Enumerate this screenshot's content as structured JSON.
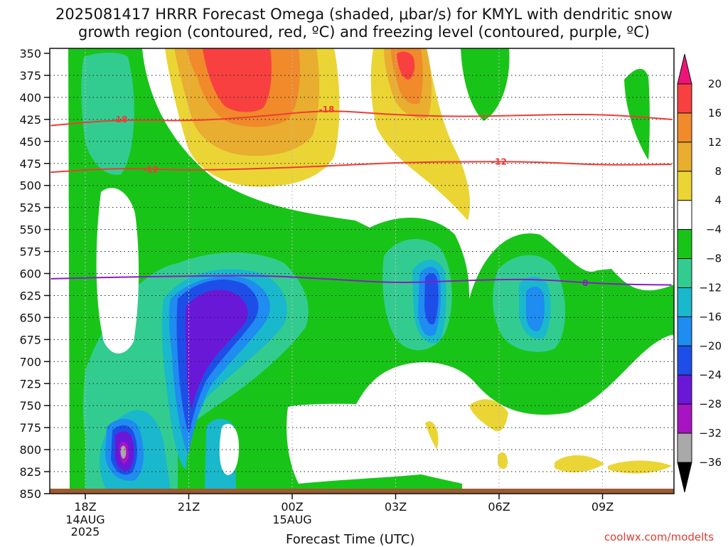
{
  "title": "2025081417 HRRR Forecast Omega (shaded, μbar/s) for KMYL with dendritic snow\ngrowth region (contoured, red, ºC) and freezing level (contoured, purple, ºC)",
  "credit": "coolwx.com/modelts",
  "chart_data": {
    "type": "time-height cross section",
    "xlabel": "Forecast Time (UTC)",
    "x_ticks": [
      {
        "label": "18Z",
        "sub": [
          "14AUG",
          "2025"
        ],
        "hour": 0
      },
      {
        "label": "21Z",
        "sub": [],
        "hour": 3
      },
      {
        "label": "00Z",
        "sub": [
          "15AUG"
        ],
        "hour": 6
      },
      {
        "label": "03Z",
        "sub": [],
        "hour": 9
      },
      {
        "label": "06Z",
        "sub": [],
        "hour": 12
      },
      {
        "label": "09Z",
        "sub": [],
        "hour": 15
      }
    ],
    "x_range_hours": [
      -1,
      17
    ],
    "y_levels_mb": [
      350,
      375,
      400,
      425,
      450,
      475,
      500,
      525,
      550,
      575,
      600,
      625,
      650,
      675,
      700,
      725,
      750,
      775,
      800,
      825,
      850
    ],
    "grid": true,
    "colorbar": {
      "labels": [
        "20",
        "16",
        "12",
        "8",
        "4",
        "−4",
        "−8",
        "−12",
        "−16",
        "−20",
        "−24",
        "−28",
        "−32",
        "−36"
      ],
      "colors": [
        "#ee1477",
        "#f84040",
        "#f08a2a",
        "#e9ad30",
        "#ead535",
        "#ffffff",
        "#19c419",
        "#33cc90",
        "#19b8cc",
        "#1e8cf0",
        "#1e4ee8",
        "#6a18d8",
        "#a814c2",
        "#a9a9a9",
        "#000000"
      ],
      "colors_note": "top arrow, then bands from top to bottom, then bottom arrow"
    },
    "contours": [
      {
        "name": "-18",
        "color": "#ef3b36",
        "points": [
          [
            -1,
            432
          ],
          [
            1,
            425
          ],
          [
            3,
            427
          ],
          [
            5,
            422
          ],
          [
            7,
            414
          ],
          [
            9,
            420
          ],
          [
            11,
            422
          ],
          [
            13,
            420
          ],
          [
            15,
            419
          ],
          [
            17,
            425
          ]
        ]
      },
      {
        "name": "-12",
        "color": "#ef3b36",
        "points": [
          [
            -1,
            485
          ],
          [
            1,
            480
          ],
          [
            3,
            483
          ],
          [
            5,
            481
          ],
          [
            7,
            478
          ],
          [
            9,
            474
          ],
          [
            11,
            473
          ],
          [
            13,
            473
          ],
          [
            15,
            477
          ],
          [
            17,
            476
          ]
        ]
      },
      {
        "name": "0",
        "color": "#8b1bc4",
        "points": [
          [
            -1,
            606
          ],
          [
            1,
            604
          ],
          [
            3,
            603
          ],
          [
            5,
            602
          ],
          [
            7,
            606
          ],
          [
            9,
            611
          ],
          [
            11,
            608
          ],
          [
            13,
            606
          ],
          [
            15,
            612
          ],
          [
            17,
            613
          ]
        ]
      }
    ]
  }
}
